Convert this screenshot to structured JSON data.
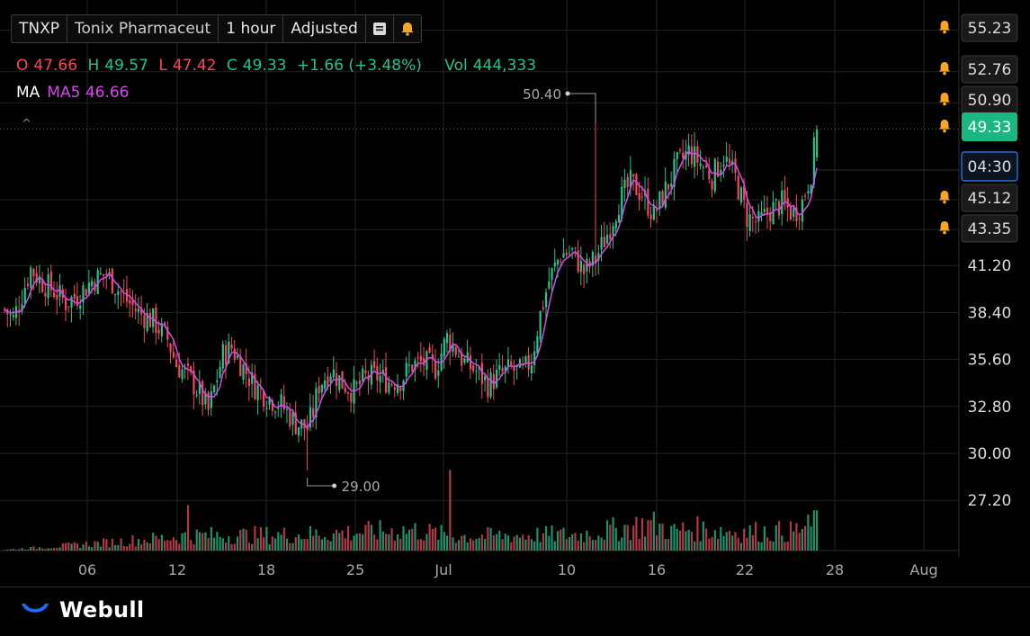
{
  "header": {
    "ticker": "TNXP",
    "company": "Tonix Pharmaceut",
    "interval": "1 hour",
    "adjustment": "Adjusted",
    "menu_icon": "menu-icon",
    "alert_icon": "bell-icon"
  },
  "ohlc": {
    "o_label": "O",
    "o": "47.66",
    "h_label": "H",
    "h": "49.57",
    "l_label": "L",
    "l": "47.42",
    "c_label": "C",
    "c": "49.33",
    "change": "+1.66 (+3.48%)",
    "vol_label": "Vol",
    "vol": "444,333"
  },
  "indicator": {
    "label": "MA",
    "value": "MA5 46.66"
  },
  "brand": {
    "name": "Webull"
  },
  "colors": {
    "up": "#25c38e",
    "down": "#f2495c",
    "ma": "#d24ce6",
    "alert": "#f5a623"
  },
  "chart_data": {
    "type": "candlestick",
    "y_ticks": [
      "55.23",
      "52.76",
      "50.90",
      "49.33",
      "45.12",
      "43.35",
      "41.20",
      "38.40",
      "35.60",
      "32.80",
      "30.00",
      "27.20"
    ],
    "x_ticks": [
      "06",
      "12",
      "18",
      "25",
      "Jul",
      "10",
      "16",
      "22",
      "28",
      "Aug"
    ],
    "price_labels": [
      {
        "value": "55.23",
        "alert": true
      },
      {
        "value": "52.76",
        "alert": true
      },
      {
        "value": "50.90",
        "alert": true
      },
      {
        "value": "49.33",
        "alert": true,
        "current": true
      },
      {
        "value": "04:30",
        "countdown": true
      },
      {
        "value": "45.12",
        "alert": true
      },
      {
        "value": "43.35",
        "alert": true
      },
      {
        "value": "41.20"
      },
      {
        "value": "38.40"
      },
      {
        "value": "35.60"
      },
      {
        "value": "32.80"
      },
      {
        "value": "30.00"
      },
      {
        "value": "27.20"
      }
    ],
    "annotations": {
      "high": "50.40",
      "low": "29.00"
    },
    "grid": true,
    "legend": "top-left",
    "series": [
      {
        "name": "Price",
        "anchors": [
          [
            0,
            38.6
          ],
          [
            3,
            38.0
          ],
          [
            6,
            39.5
          ],
          [
            9,
            41.0
          ],
          [
            13,
            40.2
          ],
          [
            17,
            39.7
          ],
          [
            21,
            39.0
          ],
          [
            25,
            39.4
          ],
          [
            30,
            40.3
          ],
          [
            35,
            40.7
          ],
          [
            41,
            39.3
          ],
          [
            46,
            38.4
          ],
          [
            51,
            37.9
          ],
          [
            56,
            36.8
          ],
          [
            59,
            35.3
          ],
          [
            63,
            34.6
          ],
          [
            67,
            33.6
          ],
          [
            70,
            32.5
          ],
          [
            75,
            35.9
          ],
          [
            78,
            36.3
          ],
          [
            82,
            35.1
          ],
          [
            86,
            34.0
          ],
          [
            90,
            33.4
          ],
          [
            95,
            32.9
          ],
          [
            100,
            31.8
          ],
          [
            104,
            31.5
          ],
          [
            106,
            32.5
          ],
          [
            108,
            34.1
          ],
          [
            112,
            35.0
          ],
          [
            116,
            34.2
          ],
          [
            120,
            33.7
          ],
          [
            124,
            34.5
          ],
          [
            128,
            34.6
          ],
          [
            132,
            34.3
          ],
          [
            136,
            34.4
          ],
          [
            140,
            35.3
          ],
          [
            144,
            35.4
          ],
          [
            148,
            35.1
          ],
          [
            152,
            36.9
          ],
          [
            155,
            36.2
          ],
          [
            158,
            35.4
          ],
          [
            162,
            34.9
          ],
          [
            166,
            34.1
          ],
          [
            170,
            34.7
          ],
          [
            174,
            35.0
          ],
          [
            178,
            34.8
          ],
          [
            181,
            35.6
          ],
          [
            184,
            38.3
          ],
          [
            187,
            40.3
          ],
          [
            191,
            41.9
          ],
          [
            195,
            42.0
          ],
          [
            199,
            40.8
          ],
          [
            203,
            41.6
          ],
          [
            207,
            43.1
          ],
          [
            211,
            45.0
          ],
          [
            215,
            46.1
          ],
          [
            219,
            45.5
          ],
          [
            223,
            44.2
          ],
          [
            227,
            45.7
          ],
          [
            231,
            47.2
          ],
          [
            235,
            48.0
          ],
          [
            239,
            47.3
          ],
          [
            243,
            46.5
          ],
          [
            247,
            47.7
          ],
          [
            251,
            46.4
          ],
          [
            255,
            44.1
          ],
          [
            259,
            43.7
          ],
          [
            263,
            44.5
          ],
          [
            267,
            44.9
          ],
          [
            271,
            44.3
          ],
          [
            274,
            45.0
          ],
          [
            277,
            46.8
          ],
          [
            279,
            49.33
          ]
        ]
      },
      {
        "name": "Volume",
        "peaks": [
          [
            0,
            0.05
          ],
          [
            19,
            0.28
          ],
          [
            55,
            0.8
          ],
          [
            63,
            0.95
          ],
          [
            100,
            1.0
          ],
          [
            140,
            1.3
          ],
          [
            155,
            0.9
          ],
          [
            186,
            1.0
          ],
          [
            197,
            1.0
          ],
          [
            222,
            1.7
          ],
          [
            230,
            1.2
          ],
          [
            235,
            1.4
          ],
          [
            245,
            1.3
          ],
          [
            252,
            1.2
          ],
          [
            270,
            1.2
          ],
          [
            279,
            1.6
          ]
        ]
      }
    ]
  }
}
